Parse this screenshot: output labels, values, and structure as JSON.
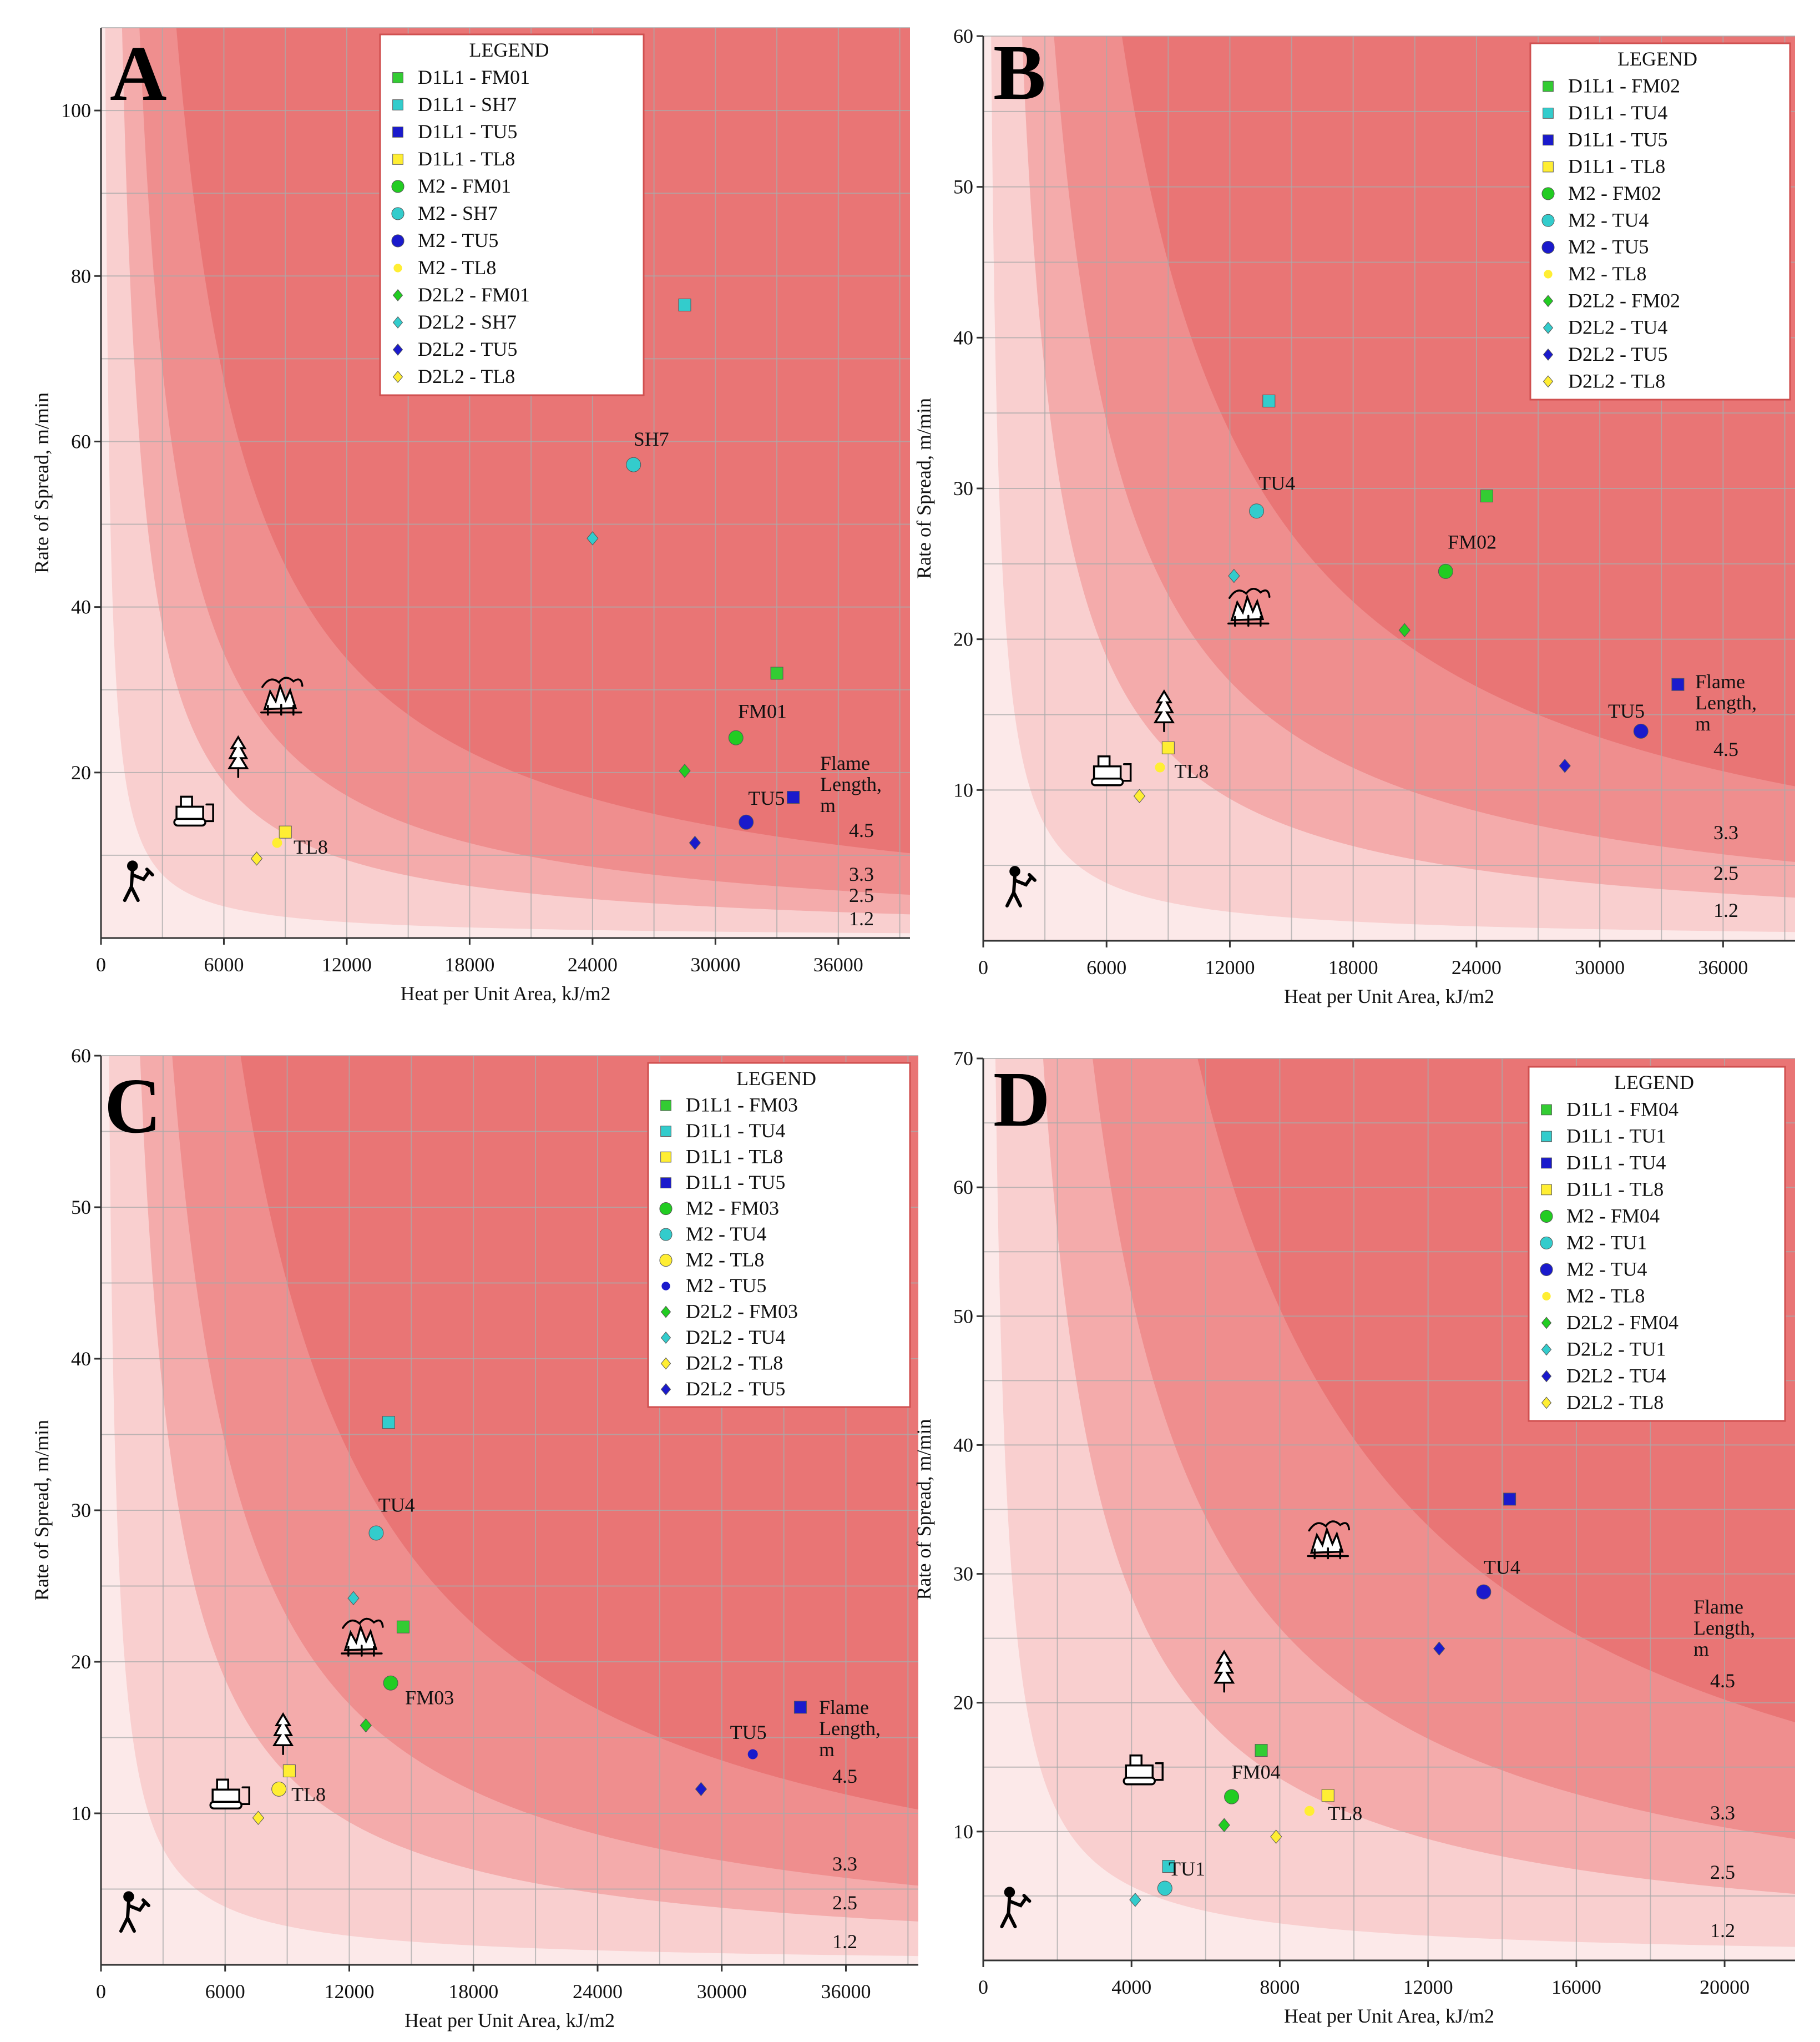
{
  "figure": {
    "colors": {
      "zone0": "#FCE9E9",
      "zone1": "#F9CFCF",
      "zone2": "#F4ABAB",
      "zone3": "#EF8E8E",
      "zone4": "#E97575",
      "grid": "#A9A9A9",
      "legend_border": "#D05050",
      "text": "#111111"
    }
  },
  "chart_data": [
    {
      "panel": "A",
      "type": "scatter",
      "xlabel": "Heat per Unit Area, kJ/m2",
      "ylabel": "Rate of Spread, m/min",
      "xlim": [
        0,
        39500
      ],
      "ylim": [
        0,
        110
      ],
      "xticks": [
        0,
        6000,
        12000,
        18000,
        24000,
        30000,
        36000
      ],
      "xtick_labels": [
        "0",
        "6000",
        "12000",
        "18000",
        "24000",
        "30000",
        "36000"
      ],
      "yticks": [
        20,
        40,
        60,
        80,
        100
      ],
      "ytick_labels": [
        "20",
        "40",
        "60",
        "80",
        "100"
      ],
      "flame_title": [
        "Flame",
        "Length,",
        "m"
      ],
      "flame_boundaries": [
        1.2,
        2.5,
        3.3,
        4.5
      ],
      "flame_labels": [
        "1.2",
        "2.5",
        "3.3",
        "4.5"
      ],
      "legend_title": "LEGEND",
      "series": [
        {
          "name": "D1L1 - FM01",
          "color": "#33CC33",
          "marker": "square",
          "points": [
            [
              33000,
              32
            ]
          ]
        },
        {
          "name": "D1L1 - SH7",
          "color": "#33CCCC",
          "marker": "square",
          "points": [
            [
              28500,
              76.5
            ]
          ]
        },
        {
          "name": "D1L1 - TU5",
          "color": "#1A1ACC",
          "marker": "square",
          "points": [
            [
              33800,
              17
            ]
          ]
        },
        {
          "name": "D1L1 - TL8",
          "color": "#FFEE33",
          "marker": "square",
          "points": [
            [
              9000,
              12.8
            ]
          ]
        },
        {
          "name": "M2 - FM01",
          "color": "#22CC22",
          "marker": "circle",
          "points": [
            [
              31000,
              24.2
            ]
          ]
        },
        {
          "name": "M2 - SH7",
          "color": "#33CCCC",
          "marker": "circle",
          "points": [
            [
              26000,
              57.2
            ]
          ]
        },
        {
          "name": "M2 - TU5",
          "color": "#1A1ACC",
          "marker": "circle",
          "points": [
            [
              31500,
              14
            ]
          ]
        },
        {
          "name": "M2 - TL8",
          "color": "#FFEE33",
          "marker": "dot",
          "points": [
            [
              8600,
              11.5
            ]
          ]
        },
        {
          "name": "D2L2 - FM01",
          "color": "#22CC22",
          "marker": "diamond",
          "points": [
            [
              28500,
              20.2
            ]
          ]
        },
        {
          "name": "D2L2 - SH7",
          "color": "#33CCCC",
          "marker": "diamond",
          "points": [
            [
              24000,
              48.3
            ]
          ]
        },
        {
          "name": "D2L2 - TU5",
          "color": "#1A1ACC",
          "marker": "diamond",
          "points": [
            [
              29000,
              11.5
            ]
          ]
        },
        {
          "name": "D2L2 - TL8",
          "color": "#FFEE33",
          "marker": "diamond",
          "points": [
            [
              7600,
              9.6
            ]
          ]
        }
      ],
      "annotations": [
        {
          "text": "SH7",
          "x": 26000,
          "y": 59.5
        },
        {
          "text": "FM01",
          "x": 31100,
          "y": 26.6
        },
        {
          "text": "TU5",
          "x": 31600,
          "y": 16.1
        },
        {
          "text": "TL8",
          "x": 9400,
          "y": 10.2
        }
      ],
      "icons": [
        {
          "name": "crown-fire-icon",
          "x": 8800,
          "y": 29
        },
        {
          "name": "tree-icon",
          "x": 6700,
          "y": 22
        },
        {
          "name": "dozer-icon",
          "x": 4500,
          "y": 15.2
        },
        {
          "name": "hand-crew-icon",
          "x": 1700,
          "y": 6.7
        }
      ]
    },
    {
      "panel": "B",
      "type": "scatter",
      "xlabel": "Heat per Unit Area, kJ/m2",
      "ylabel": "Rate of Spread, m/min",
      "xlim": [
        0,
        39500
      ],
      "ylim": [
        0,
        60
      ],
      "xticks": [
        0,
        6000,
        12000,
        18000,
        24000,
        30000,
        36000
      ],
      "xtick_labels": [
        "0",
        "6000",
        "12000",
        "18000",
        "24000",
        "30000",
        "36000"
      ],
      "yticks": [
        10,
        20,
        30,
        40,
        50,
        60
      ],
      "ytick_labels": [
        "10",
        "20",
        "30",
        "40",
        "50",
        "60"
      ],
      "flame_title": [
        "Flame",
        "Length,",
        "m"
      ],
      "flame_boundaries": [
        1.2,
        2.5,
        3.3,
        4.5
      ],
      "flame_labels": [
        "1.2",
        "2.5",
        "3.3",
        "4.5"
      ],
      "legend_title": "LEGEND",
      "series": [
        {
          "name": "D1L1 - FM02",
          "color": "#33CC33",
          "marker": "square",
          "points": [
            [
              24500,
              29.5
            ]
          ]
        },
        {
          "name": "D1L1 - TU4",
          "color": "#33CCCC",
          "marker": "square",
          "points": [
            [
              13900,
              35.8
            ]
          ]
        },
        {
          "name": "D1L1 - TU5",
          "color": "#1A1ACC",
          "marker": "square",
          "points": [
            [
              33800,
              17
            ]
          ]
        },
        {
          "name": "D1L1 - TL8",
          "color": "#FFEE33",
          "marker": "square",
          "points": [
            [
              9000,
              12.8
            ]
          ]
        },
        {
          "name": "M2 - FM02",
          "color": "#22CC22",
          "marker": "circle",
          "points": [
            [
              22500,
              24.5
            ]
          ]
        },
        {
          "name": "M2 - TU4",
          "color": "#33CCCC",
          "marker": "circle",
          "points": [
            [
              13300,
              28.5
            ]
          ]
        },
        {
          "name": "M2 - TU5",
          "color": "#1A1ACC",
          "marker": "circle",
          "points": [
            [
              32000,
              13.9
            ]
          ]
        },
        {
          "name": "M2 - TL8",
          "color": "#FFEE33",
          "marker": "dot",
          "points": [
            [
              8600,
              11.5
            ]
          ]
        },
        {
          "name": "D2L2 - FM02",
          "color": "#22CC22",
          "marker": "diamond",
          "points": [
            [
              20500,
              20.6
            ]
          ]
        },
        {
          "name": "D2L2 - TU4",
          "color": "#33CCCC",
          "marker": "diamond",
          "points": [
            [
              12200,
              24.2
            ]
          ]
        },
        {
          "name": "D2L2 - TU5",
          "color": "#1A1ACC",
          "marker": "diamond",
          "points": [
            [
              28300,
              11.6
            ]
          ]
        },
        {
          "name": "D2L2 - TL8",
          "color": "#FFEE33",
          "marker": "diamond",
          "points": [
            [
              7600,
              9.6
            ]
          ]
        }
      ],
      "annotations": [
        {
          "text": "TU4",
          "x": 13400,
          "y": 29.9
        },
        {
          "text": "FM02",
          "x": 22600,
          "y": 26
        },
        {
          "text": "TU5",
          "x": 30400,
          "y": 14.8
        },
        {
          "text": "TL8",
          "x": 9300,
          "y": 10.8
        }
      ],
      "icons": [
        {
          "name": "crown-fire-icon",
          "x": 12900,
          "y": 22
        },
        {
          "name": "tree-icon",
          "x": 8800,
          "y": 15.3
        },
        {
          "name": "dozer-icon",
          "x": 6200,
          "y": 11.2
        },
        {
          "name": "hand-crew-icon",
          "x": 1700,
          "y": 3.5
        }
      ]
    },
    {
      "panel": "C",
      "type": "scatter",
      "xlabel": "Heat per Unit Area, kJ/m2",
      "ylabel": "Rate of Spread, m/min",
      "xlim": [
        0,
        39500
      ],
      "ylim": [
        0,
        60
      ],
      "xticks": [
        0,
        6000,
        12000,
        18000,
        24000,
        30000,
        36000
      ],
      "xtick_labels": [
        "0",
        "6000",
        "12000",
        "18000",
        "24000",
        "30000",
        "36000"
      ],
      "yticks": [
        10,
        20,
        30,
        40,
        50,
        60
      ],
      "ytick_labels": [
        "10",
        "20",
        "30",
        "40",
        "50",
        "60"
      ],
      "flame_title": [
        "Flame",
        "Length,",
        "m"
      ],
      "flame_boundaries": [
        1.2,
        2.5,
        3.3,
        4.5
      ],
      "flame_labels": [
        "1.2",
        "2.5",
        "3.3",
        "4.5"
      ],
      "legend_title": "LEGEND",
      "series": [
        {
          "name": "D1L1 - FM03",
          "color": "#33CC33",
          "marker": "square",
          "points": [
            [
              14600,
              22.3
            ]
          ]
        },
        {
          "name": "D1L1 - TU4",
          "color": "#33CCCC",
          "marker": "square",
          "points": [
            [
              13900,
              35.8
            ]
          ]
        },
        {
          "name": "D1L1 - TL8",
          "color": "#FFEE33",
          "marker": "square",
          "points": [
            [
              9100,
              12.8
            ]
          ]
        },
        {
          "name": "D1L1 - TU5",
          "color": "#1A1ACC",
          "marker": "square",
          "points": [
            [
              33800,
              17
            ]
          ]
        },
        {
          "name": "M2 - FM03",
          "color": "#22CC22",
          "marker": "circle",
          "points": [
            [
              14000,
              18.6
            ]
          ]
        },
        {
          "name": "M2 - TU4",
          "color": "#33CCCC",
          "marker": "circle",
          "points": [
            [
              13300,
              28.5
            ]
          ]
        },
        {
          "name": "M2 - TL8",
          "color": "#FFEE33",
          "marker": "circle",
          "points": [
            [
              8600,
              11.6
            ]
          ]
        },
        {
          "name": "M2 - TU5",
          "color": "#1A1ACC",
          "marker": "dot",
          "points": [
            [
              31500,
              13.9
            ]
          ]
        },
        {
          "name": "D2L2 - FM03",
          "color": "#22CC22",
          "marker": "diamond",
          "points": [
            [
              12800,
              15.8
            ]
          ]
        },
        {
          "name": "D2L2 - TU4",
          "color": "#33CCCC",
          "marker": "diamond",
          "points": [
            [
              12200,
              24.2
            ]
          ]
        },
        {
          "name": "D2L2 - TL8",
          "color": "#FFEE33",
          "marker": "diamond",
          "points": [
            [
              7600,
              9.7
            ]
          ]
        },
        {
          "name": "D2L2 - TU5",
          "color": "#1A1ACC",
          "marker": "diamond",
          "points": [
            [
              29000,
              11.6
            ]
          ]
        }
      ],
      "annotations": [
        {
          "text": "TU4",
          "x": 13400,
          "y": 29.9
        },
        {
          "text": "FM03",
          "x": 14700,
          "y": 17.2
        },
        {
          "text": "TU5",
          "x": 30400,
          "y": 14.9
        },
        {
          "text": "TL8",
          "x": 9200,
          "y": 10.8
        }
      ],
      "icons": [
        {
          "name": "crown-fire-icon",
          "x": 12600,
          "y": 21.5
        },
        {
          "name": "tree-icon",
          "x": 8800,
          "y": 15.3
        },
        {
          "name": "dozer-icon",
          "x": 6200,
          "y": 11.2
        },
        {
          "name": "hand-crew-icon",
          "x": 1500,
          "y": 3.4
        }
      ]
    },
    {
      "panel": "D",
      "type": "scatter",
      "xlabel": "Heat per Unit Area, kJ/m2",
      "ylabel": "Rate of Spread, m/min",
      "xlim": [
        0,
        21900
      ],
      "ylim": [
        0,
        70
      ],
      "xticks": [
        0,
        4000,
        8000,
        12000,
        16000,
        20000
      ],
      "xtick_labels": [
        "0",
        "4000",
        "8000",
        "12000",
        "16000",
        "20000"
      ],
      "yticks": [
        10,
        20,
        30,
        40,
        50,
        60,
        70
      ],
      "ytick_labels": [
        "10",
        "20",
        "30",
        "40",
        "50",
        "60",
        "70"
      ],
      "flame_title": [
        "Flame",
        "Length,",
        "m"
      ],
      "flame_boundaries": [
        1.2,
        2.5,
        3.3,
        4.5
      ],
      "flame_labels": [
        "1.2",
        "2.5",
        "3.3",
        "4.5"
      ],
      "legend_title": "LEGEND",
      "series": [
        {
          "name": "D1L1 - FM04",
          "color": "#33CC33",
          "marker": "square",
          "points": [
            [
              7500,
              16.3
            ]
          ]
        },
        {
          "name": "D1L1 - TU1",
          "color": "#33CCCC",
          "marker": "square",
          "points": [
            [
              5000,
              7.3
            ]
          ]
        },
        {
          "name": "D1L1 - TU4",
          "color": "#1A1ACC",
          "marker": "square",
          "points": [
            [
              14200,
              35.8
            ]
          ]
        },
        {
          "name": "D1L1 - TL8",
          "color": "#FFEE33",
          "marker": "square",
          "points": [
            [
              9300,
              12.8
            ]
          ]
        },
        {
          "name": "M2 - FM04",
          "color": "#22CC22",
          "marker": "circle",
          "points": [
            [
              6700,
              12.7
            ]
          ]
        },
        {
          "name": "M2 - TU1",
          "color": "#33CCCC",
          "marker": "circle",
          "points": [
            [
              4900,
              5.6
            ]
          ]
        },
        {
          "name": "M2 - TU4",
          "color": "#1A1ACC",
          "marker": "circle",
          "points": [
            [
              13500,
              28.6
            ]
          ]
        },
        {
          "name": "M2 - TL8",
          "color": "#FFEE33",
          "marker": "dot",
          "points": [
            [
              8800,
              11.6
            ]
          ]
        },
        {
          "name": "D2L2 - FM04",
          "color": "#22CC22",
          "marker": "diamond",
          "points": [
            [
              6500,
              10.5
            ]
          ]
        },
        {
          "name": "D2L2 - TU1",
          "color": "#33CCCC",
          "marker": "diamond",
          "points": [
            [
              4100,
              4.7
            ]
          ]
        },
        {
          "name": "D2L2 - TU4",
          "color": "#1A1ACC",
          "marker": "diamond",
          "points": [
            [
              12300,
              24.2
            ]
          ]
        },
        {
          "name": "D2L2 - TL8",
          "color": "#FFEE33",
          "marker": "diamond",
          "points": [
            [
              7900,
              9.6
            ]
          ]
        }
      ],
      "annotations": [
        {
          "text": "TU4",
          "x": 13500,
          "y": 30
        },
        {
          "text": "FM04",
          "x": 6700,
          "y": 14.1
        },
        {
          "text": "TU1",
          "x": 5000,
          "y": 6.6
        },
        {
          "text": "TL8",
          "x": 9300,
          "y": 10.9
        }
      ],
      "icons": [
        {
          "name": "crown-fire-icon",
          "x": 9300,
          "y": 32.5
        },
        {
          "name": "tree-icon",
          "x": 6500,
          "y": 22.5
        },
        {
          "name": "dozer-icon",
          "x": 4300,
          "y": 14.7
        },
        {
          "name": "hand-crew-icon",
          "x": 800,
          "y": 4
        }
      ]
    }
  ]
}
